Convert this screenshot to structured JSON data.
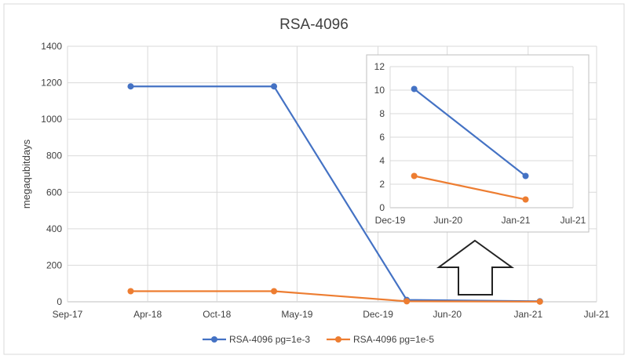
{
  "chart_data": [
    {
      "type": "line",
      "title": "RSA-4096",
      "xlabel": "",
      "ylabel": "megaqubitdays",
      "ylim": [
        0,
        1400
      ],
      "yticks": [
        0,
        200,
        400,
        600,
        800,
        1000,
        1200,
        1400
      ],
      "xlim": [
        "2017-09-01",
        "2021-07-01"
      ],
      "xticks": [
        {
          "date": "2017-09-01",
          "label": "Sep-17"
        },
        {
          "date": "2018-04-01",
          "label": "Apr-18"
        },
        {
          "date": "2018-10-01",
          "label": "Oct-18"
        },
        {
          "date": "2019-05-01",
          "label": "May-19"
        },
        {
          "date": "2019-12-01",
          "label": "Dec-19"
        },
        {
          "date": "2020-06-01",
          "label": "Jun-20"
        },
        {
          "date": "2021-01-01",
          "label": "Jan-21"
        },
        {
          "date": "2021-07-01",
          "label": "Jul-21"
        }
      ],
      "grid": true,
      "legend_placement": "bottom",
      "series": [
        {
          "name": "RSA-4096 pg=1e-3",
          "color": "#4472c4",
          "x": [
            "2018-02-15",
            "2019-03-01",
            "2020-02-15",
            "2021-02-01"
          ],
          "values": [
            1180,
            1180,
            10.1,
            2.7
          ]
        },
        {
          "name": "RSA-4096 pg=1e-5",
          "color": "#ed7d31",
          "x": [
            "2018-02-15",
            "2019-03-01",
            "2020-02-15",
            "2021-02-01"
          ],
          "values": [
            58,
            58,
            2.7,
            0.7
          ]
        }
      ]
    },
    {
      "type": "line",
      "title": "",
      "ylim": [
        0,
        12
      ],
      "yticks": [
        0,
        2,
        4,
        6,
        8,
        10,
        12
      ],
      "xlim": [
        "2019-12-01",
        "2021-07-01"
      ],
      "xticks": [
        {
          "date": "2019-12-01",
          "label": "Dec-19"
        },
        {
          "date": "2020-06-01",
          "label": "Jun-20"
        },
        {
          "date": "2021-01-01",
          "label": "Jan-21"
        },
        {
          "date": "2021-07-01",
          "label": "Jul-21"
        }
      ],
      "grid": true,
      "series": [
        {
          "color": "#4472c4",
          "x": [
            "2020-02-15",
            "2021-02-01"
          ],
          "values": [
            10.1,
            2.7
          ]
        },
        {
          "color": "#ed7d31",
          "x": [
            "2020-02-15",
            "2021-02-01"
          ],
          "values": [
            2.7,
            0.7
          ]
        }
      ]
    }
  ]
}
